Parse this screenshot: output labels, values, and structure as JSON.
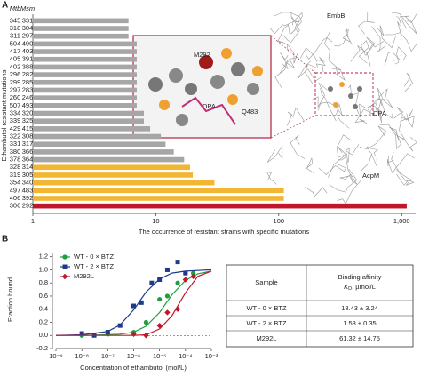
{
  "panels": [
    "A",
    "B"
  ],
  "chart_data": [
    {
      "type": "bar",
      "orientation": "horizontal",
      "column_headers": [
        "Mtb",
        "Msm"
      ],
      "categories": [
        "345",
        "318",
        "311",
        "504",
        "417",
        "405",
        "402",
        "296",
        "299",
        "297",
        "260",
        "507",
        "334",
        "339",
        "429",
        "322",
        "331",
        "380",
        "378",
        "328",
        "319",
        "354",
        "497",
        "406",
        "306"
      ],
      "msm": [
        "331",
        "304",
        "297",
        "490",
        "403",
        "391",
        "388",
        "282",
        "285",
        "283",
        "246",
        "493",
        "320",
        "325",
        "415",
        "308",
        "317",
        "366",
        "364",
        "314",
        "305",
        "340",
        "483",
        "392",
        "292"
      ],
      "values": [
        6,
        6,
        6,
        7,
        7,
        7,
        7,
        7,
        7,
        7,
        7,
        7,
        8,
        8,
        9,
        11,
        12,
        14,
        17,
        19,
        20,
        30,
        110,
        110,
        1100
      ],
      "colors": [
        "#a6a6a6",
        "#a6a6a6",
        "#a6a6a6",
        "#a6a6a6",
        "#a6a6a6",
        "#a6a6a6",
        "#a6a6a6",
        "#a6a6a6",
        "#a6a6a6",
        "#a6a6a6",
        "#a6a6a6",
        "#a6a6a6",
        "#a6a6a6",
        "#a6a6a6",
        "#a6a6a6",
        "#a6a6a6",
        "#a6a6a6",
        "#a6a6a6",
        "#a6a6a6",
        "#f2b632",
        "#f2b632",
        "#f2b632",
        "#f2b632",
        "#f2b632",
        "#c0182a"
      ],
      "log_x": true,
      "xlim": [
        1,
        1300
      ],
      "xticks": [
        1,
        10,
        100,
        {
          "value": 1000,
          "label": "1,000"
        }
      ],
      "xlabel": "The occurrence of resistant strains with specific mutations",
      "ylabel": "Ethambutol resistant mutations",
      "annotations": [
        "EmbB",
        "AcpM",
        "M292",
        "DPA",
        "Q483",
        "DPA"
      ]
    },
    {
      "type": "scatter",
      "log_x": true,
      "xlim": [
        1e-09,
        0.001
      ],
      "xticks": [
        {
          "value": 1e-09,
          "label": "10⁻⁹"
        },
        {
          "value": 1e-08,
          "label": "10⁻⁸"
        },
        {
          "value": 1e-07,
          "label": "10⁻⁷"
        },
        {
          "value": 1e-06,
          "label": "10⁻⁶"
        },
        {
          "value": 1e-05,
          "label": "10⁻⁵"
        },
        {
          "value": 0.0001,
          "label": "10⁻⁴"
        },
        {
          "value": 0.001,
          "label": "10⁻³"
        }
      ],
      "ylim": [
        -0.2,
        1.25
      ],
      "yticks": [
        -0.2,
        {
          "value": 0,
          "label": "0.0"
        },
        0.2,
        0.4,
        0.6,
        0.8,
        {
          "value": 1,
          "label": "1.0"
        },
        1.2
      ],
      "xlabel": "Concentration of ethambutol (mol/L)",
      "ylabel": "Fraction bound",
      "zero_line": true,
      "fit_x": [
        1e-09,
        1e-08,
        1e-07,
        3e-07,
        1e-06,
        3e-06,
        1e-05,
        3e-05,
        0.0001,
        0.0003,
        0.001
      ],
      "series": [
        {
          "name": "WT - 0 × BTZ",
          "color": "#1e9e3e",
          "marker": "circle",
          "x": [
            1e-08,
            1e-07,
            1e-06,
            3e-06,
            1e-05,
            2e-05,
            5e-05,
            0.0001,
            0.0002
          ],
          "values": [
            0.0,
            0.02,
            0.05,
            0.2,
            0.55,
            0.6,
            0.8,
            0.95,
            0.95
          ],
          "fit": [
            0.0,
            0.0,
            0.01,
            0.02,
            0.05,
            0.14,
            0.35,
            0.62,
            0.84,
            0.94,
            0.98
          ]
        },
        {
          "name": "WT - 2 × BTZ",
          "color": "#1f3a8a",
          "marker": "square",
          "x": [
            1e-08,
            3e-08,
            1e-07,
            3e-07,
            1e-06,
            2e-06,
            5e-06,
            1e-05,
            2e-05,
            5e-05,
            0.0001
          ],
          "values": [
            0.03,
            0.0,
            0.05,
            0.15,
            0.45,
            0.5,
            0.8,
            0.85,
            1.0,
            1.12,
            0.95
          ],
          "fit": [
            0.0,
            0.01,
            0.06,
            0.16,
            0.39,
            0.66,
            0.86,
            0.95,
            0.98,
            0.99,
            1.0
          ]
        },
        {
          "name": "M292L",
          "color": "#c0182a",
          "marker": "diamond",
          "x": [
            1e-06,
            3e-06,
            1e-05,
            2e-05,
            5e-05,
            0.0001,
            0.0002
          ],
          "values": [
            0.02,
            0.0,
            0.15,
            0.35,
            0.4,
            0.85,
            0.9
          ],
          "fit": [
            0.0,
            0.0,
            0.0,
            0.0,
            0.0,
            0.01,
            0.1,
            0.3,
            0.65,
            0.9,
            0.98
          ]
        }
      ]
    }
  ],
  "table": {
    "header": [
      "Sample",
      "Binding affinity"
    ],
    "kd_symbol": "K",
    "kd_subscript": "D",
    "kd_unit": ", µmol/L",
    "rows": [
      [
        "WT - 0 × BTZ",
        "18.43 ± 3.24"
      ],
      [
        "WT - 2 × BTZ",
        "1.58 ± 0.35"
      ],
      [
        "M292L",
        "61.32 ± 14.75"
      ]
    ]
  }
}
